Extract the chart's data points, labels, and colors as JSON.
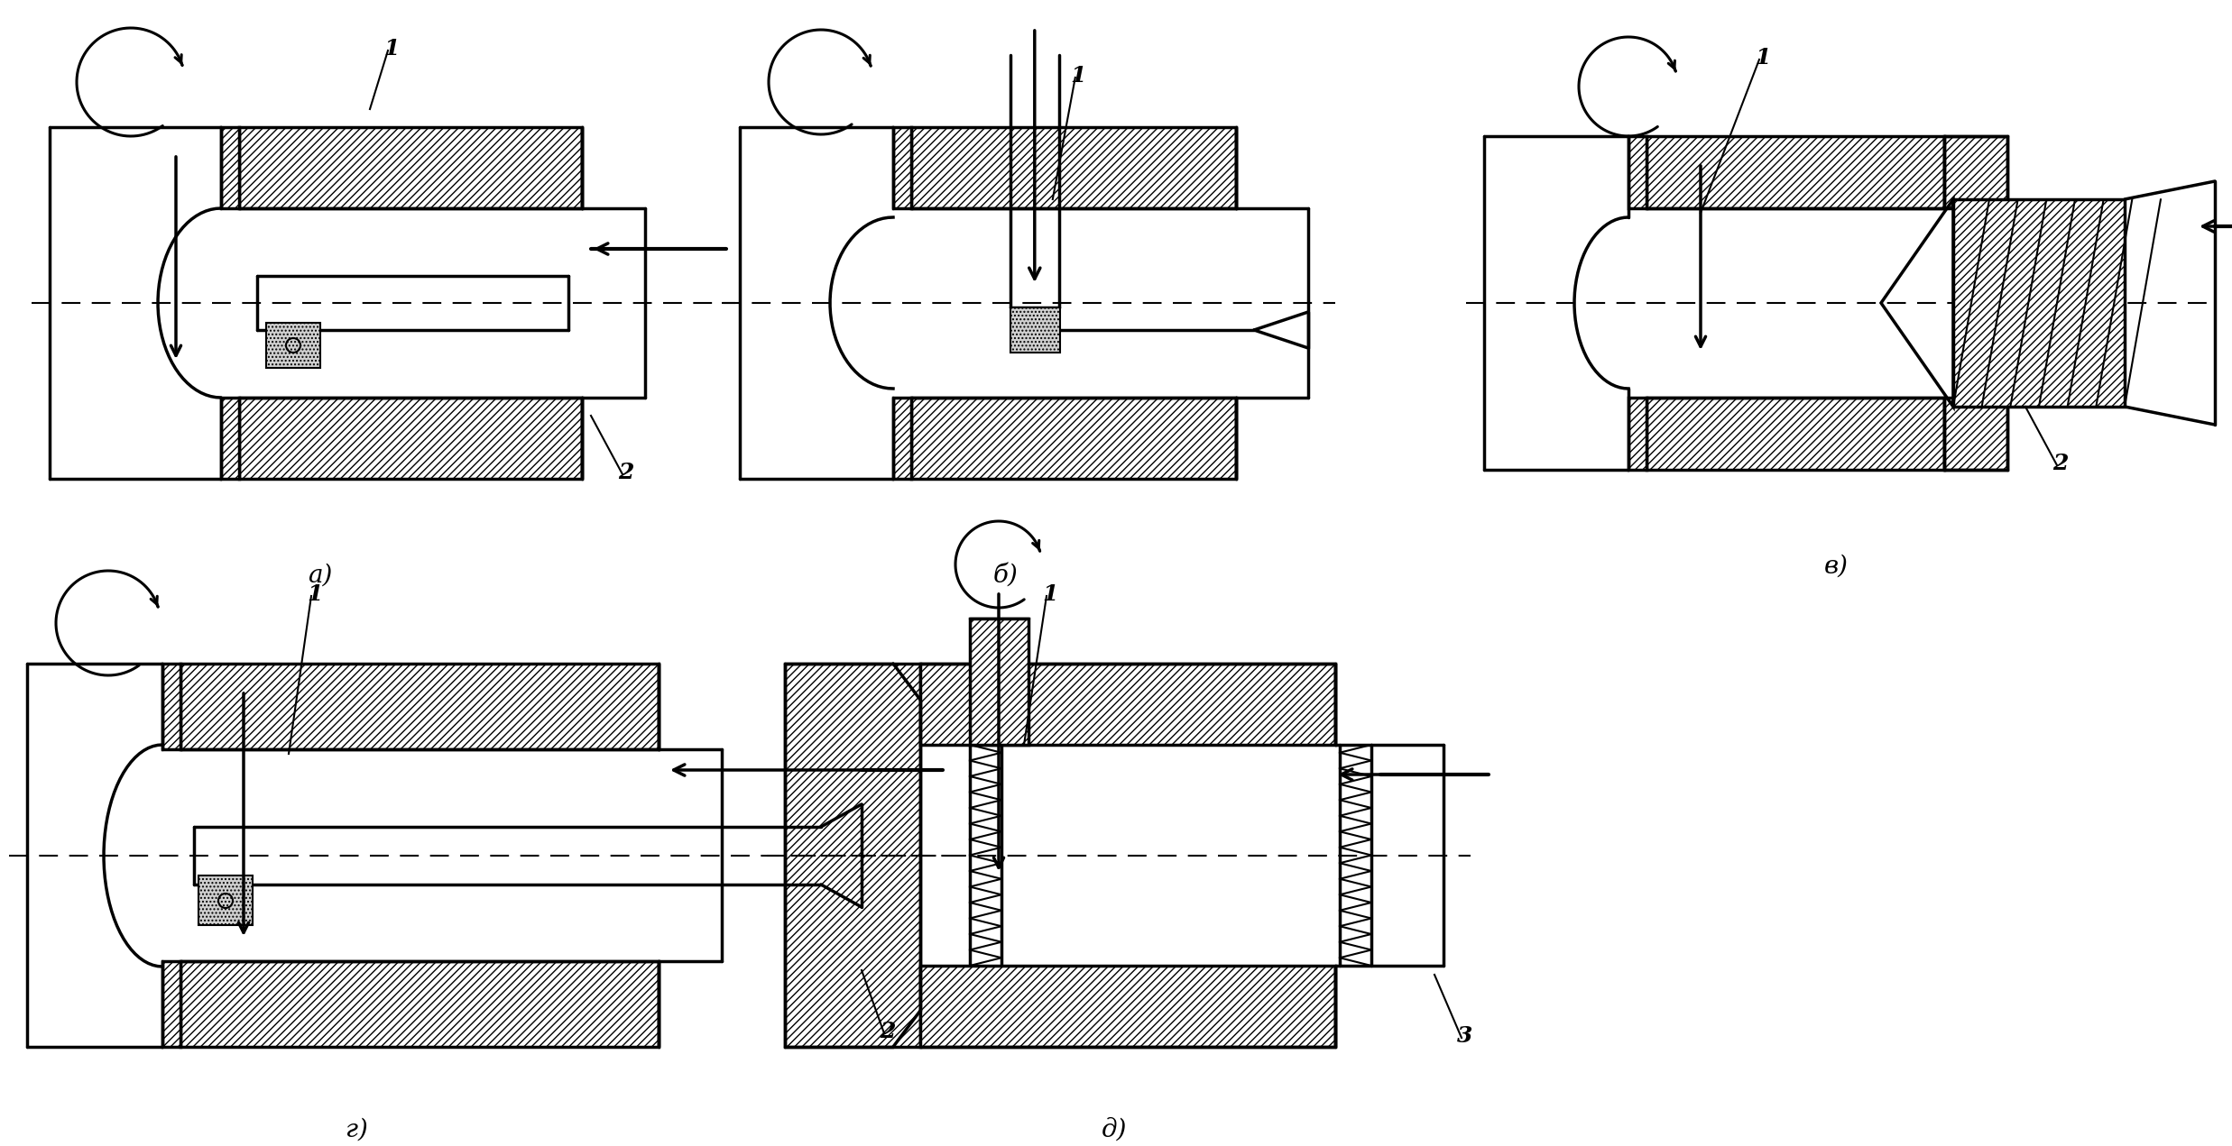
{
  "background_color": "#ffffff",
  "labels": {
    "a": "а)",
    "b": "б)",
    "v": "в)",
    "g": "г)",
    "d": "д)"
  },
  "label_fontsize": 20,
  "number_fontsize": 18,
  "figsize": [
    24.74,
    12.71
  ],
  "dpi": 100,
  "lw": 2.5,
  "lw_thin": 1.5,
  "hatch": "////",
  "dot_hatch": "...."
}
